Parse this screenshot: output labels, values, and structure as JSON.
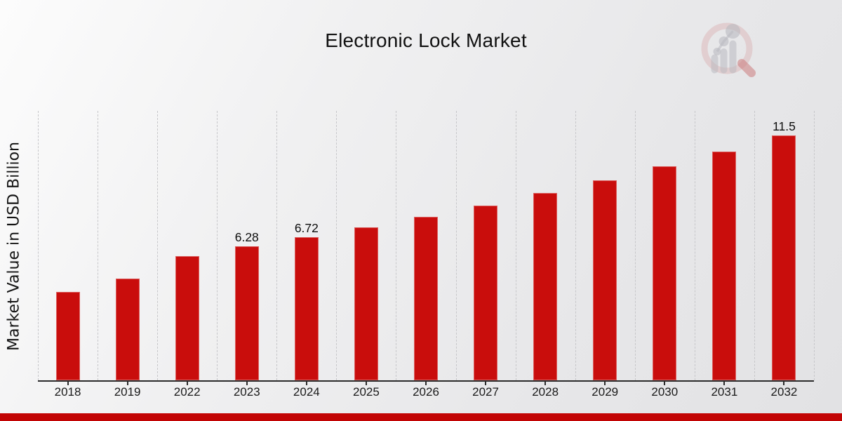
{
  "chart_data": {
    "type": "bar",
    "title": "Electronic Lock Market",
    "xlabel": "",
    "ylabel": "Market Value in USD Billion",
    "categories": [
      "2018",
      "2019",
      "2022",
      "2023",
      "2024",
      "2025",
      "2026",
      "2027",
      "2028",
      "2029",
      "2030",
      "2031",
      "2032"
    ],
    "values": [
      4.15,
      4.78,
      5.82,
      6.28,
      6.72,
      7.18,
      7.68,
      8.21,
      8.78,
      9.39,
      10.04,
      10.74,
      11.5
    ],
    "bar_labels": [
      "",
      "",
      "",
      "6.28",
      "6.72",
      "",
      "",
      "",
      "",
      "",
      "",
      "",
      "11.5"
    ],
    "ylim": [
      0,
      12.65
    ],
    "grid": "vertical dashed category separators",
    "legend": "none",
    "colors": {
      "bar": "#c90d0c",
      "axis": "#2b2b2b",
      "gridline": "#c7c7ca",
      "text": "#111111"
    }
  },
  "branding": {
    "logo_icon": "magnifier-bar-chart-watermark",
    "accent_strip_color": "#c20404"
  }
}
